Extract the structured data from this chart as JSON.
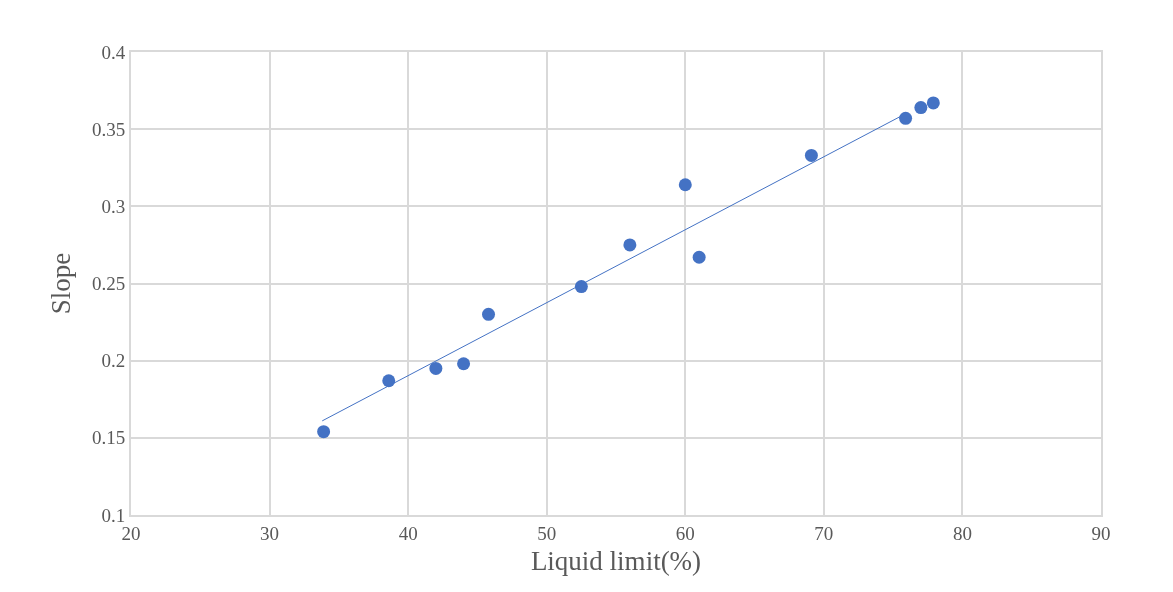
{
  "chart_data": {
    "type": "scatter",
    "xlabel": "Liquid limit(%)",
    "ylabel": "Slope",
    "xlim": [
      20,
      90
    ],
    "xticks": [
      20,
      30,
      40,
      50,
      60,
      70,
      80,
      90
    ],
    "ylim": [
      0.1,
      0.4
    ],
    "yticks": [
      0.1,
      0.15,
      0.2,
      0.25,
      0.3,
      0.35,
      0.4
    ],
    "grid": true,
    "marker": "circle",
    "series": [
      {
        "color": "#4472c4",
        "x": [
          33.9,
          38.6,
          42.0,
          44.0,
          45.8,
          52.5,
          56.0,
          60.0,
          61.0,
          69.1,
          75.9,
          77.0,
          77.9
        ],
        "values": [
          0.154,
          0.187,
          0.195,
          0.198,
          0.23,
          0.248,
          0.275,
          0.314,
          0.267,
          0.333,
          0.357,
          0.364,
          0.367
        ]
      },
      {
        "type": "line",
        "color": "#4472c4",
        "marker": "none",
        "x": [
          33.8,
          75.9
        ],
        "values": [
          0.161,
          0.36
        ]
      }
    ]
  }
}
